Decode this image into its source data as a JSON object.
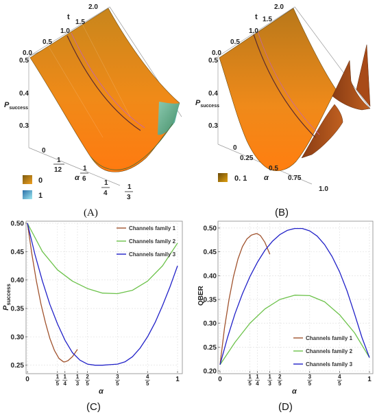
{
  "panels": {
    "A": {
      "caption": "(A)",
      "t_label": "t",
      "t_ticks": [
        "0.0",
        "0.5",
        "1.0",
        "1.5",
        "2.0"
      ],
      "z_label": "P",
      "z_label_sub": "success",
      "z_ticks": [
        "0.5",
        "0.4",
        "0.3",
        "0"
      ],
      "alpha_label": "α",
      "alpha_ticks": [
        {
          "num": "1",
          "den": "12"
        },
        {
          "num": "1",
          "den": "6"
        },
        {
          "num": "1",
          "den": "4"
        },
        {
          "num": "1",
          "den": "3"
        }
      ],
      "legend": [
        {
          "label": "0",
          "colors": [
            "#7a5a10",
            "#f0a020"
          ]
        },
        {
          "label": "1",
          "colors": [
            "#2a6fa8",
            "#9fe8f0"
          ]
        }
      ]
    },
    "B": {
      "caption": "(B)",
      "t_label": "t",
      "t_ticks": [
        "0.0",
        "0.5",
        "1.0",
        "1.5",
        "2.0"
      ],
      "z_label": "P",
      "z_label_sub": "success",
      "z_ticks": [
        "0.5",
        "0.4",
        "0.3"
      ],
      "alpha_label": "α",
      "alpha_ticks": [
        "0",
        "0.25",
        "0.5",
        "0.75",
        "1.0"
      ],
      "legend": [
        {
          "label": "0. 1",
          "colors": [
            "#6a4a08",
            "#e0a010"
          ]
        }
      ]
    },
    "C": {
      "caption": "(C)"
    },
    "D": {
      "caption": "(D)"
    }
  },
  "chart_data": [
    {
      "type": "line",
      "panel": "C",
      "xlabel": "α",
      "ylabel": "P",
      "ylabel_sub": "success",
      "xlim": [
        0,
        1
      ],
      "ylim": [
        0.24,
        0.5
      ],
      "y_ticks": [
        "0.25",
        "0.30",
        "0.35",
        "0.40",
        "0.45",
        "0.50"
      ],
      "x_ticks": [
        {
          "value": 0,
          "label": "0"
        },
        {
          "value": 0.2,
          "num": "1",
          "den": "5"
        },
        {
          "value": 0.25,
          "num": "1",
          "den": "4"
        },
        {
          "value": 0.3333,
          "num": "1",
          "den": "3"
        },
        {
          "value": 0.4,
          "num": "2",
          "den": "5"
        },
        {
          "value": 0.6,
          "num": "3",
          "den": "5"
        },
        {
          "value": 0.8,
          "num": "4",
          "den": "5"
        },
        {
          "value": 1,
          "label": "1"
        }
      ],
      "legend_position": "top-right",
      "series": [
        {
          "name": "Channels family 1",
          "color": "#a0522d",
          "x": [
            0,
            0.03,
            0.06,
            0.09,
            0.12,
            0.15,
            0.18,
            0.21,
            0.24,
            0.25,
            0.27,
            0.3,
            0.3333
          ],
          "y": [
            0.5,
            0.445,
            0.398,
            0.358,
            0.325,
            0.297,
            0.276,
            0.262,
            0.256,
            0.256,
            0.258,
            0.265,
            0.278
          ]
        },
        {
          "name": "Channels family 2",
          "color": "#6cc24a",
          "x": [
            0,
            0.1,
            0.2,
            0.3,
            0.4,
            0.5,
            0.6,
            0.7,
            0.8,
            0.9,
            1.0
          ],
          "y": [
            0.5,
            0.45,
            0.418,
            0.398,
            0.385,
            0.377,
            0.376,
            0.382,
            0.398,
            0.425,
            0.465
          ]
        },
        {
          "name": "Channels family 3",
          "color": "#2020c8",
          "x": [
            0,
            0.05,
            0.1,
            0.15,
            0.2,
            0.25,
            0.3,
            0.35,
            0.4,
            0.45,
            0.5,
            0.55,
            0.6,
            0.65,
            0.7,
            0.75,
            0.8,
            0.85,
            0.9,
            0.95,
            1.0
          ],
          "y": [
            0.5,
            0.445,
            0.398,
            0.357,
            0.323,
            0.294,
            0.272,
            0.259,
            0.252,
            0.25,
            0.25,
            0.251,
            0.252,
            0.256,
            0.265,
            0.28,
            0.3,
            0.325,
            0.355,
            0.388,
            0.425
          ]
        }
      ]
    },
    {
      "type": "line",
      "panel": "D",
      "xlabel": "α",
      "ylabel": "QBER",
      "xlim": [
        0,
        1
      ],
      "ylim": [
        0.2,
        0.51
      ],
      "y_ticks": [
        "0.20",
        "0.25",
        "0.30",
        "0.35",
        "0.40",
        "0.45",
        "0.50"
      ],
      "x_ticks": [
        {
          "value": 0,
          "label": "0"
        },
        {
          "value": 0.2,
          "num": "1",
          "den": "5"
        },
        {
          "value": 0.25,
          "num": "1",
          "den": "4"
        },
        {
          "value": 0.3333,
          "num": "1",
          "den": "3"
        },
        {
          "value": 0.4,
          "num": "2",
          "den": "5"
        },
        {
          "value": 0.6,
          "num": "3",
          "den": "5"
        },
        {
          "value": 0.8,
          "num": "4",
          "den": "5"
        },
        {
          "value": 1,
          "label": "1"
        }
      ],
      "legend_position": "bottom-right",
      "series": [
        {
          "name": "Channels family 1",
          "color": "#a0522d",
          "x": [
            0,
            0.03,
            0.06,
            0.09,
            0.12,
            0.15,
            0.18,
            0.21,
            0.24,
            0.25,
            0.27,
            0.3,
            0.3333
          ],
          "y": [
            0.213,
            0.29,
            0.35,
            0.398,
            0.435,
            0.461,
            0.477,
            0.485,
            0.488,
            0.488,
            0.484,
            0.47,
            0.445
          ]
        },
        {
          "name": "Channels family 2",
          "color": "#6cc24a",
          "x": [
            0,
            0.1,
            0.2,
            0.3,
            0.4,
            0.5,
            0.6,
            0.7,
            0.8,
            0.9,
            1.0
          ],
          "y": [
            0.213,
            0.26,
            0.3,
            0.33,
            0.35,
            0.359,
            0.358,
            0.345,
            0.318,
            0.28,
            0.228
          ]
        },
        {
          "name": "Channels family 3",
          "color": "#2020c8",
          "x": [
            0,
            0.05,
            0.1,
            0.15,
            0.2,
            0.25,
            0.3,
            0.35,
            0.4,
            0.45,
            0.5,
            0.55,
            0.6,
            0.65,
            0.7,
            0.75,
            0.8,
            0.85,
            0.9,
            0.95,
            1.0
          ],
          "y": [
            0.213,
            0.27,
            0.32,
            0.362,
            0.398,
            0.428,
            0.453,
            0.472,
            0.486,
            0.495,
            0.499,
            0.499,
            0.494,
            0.483,
            0.465,
            0.44,
            0.408,
            0.368,
            0.32,
            0.27,
            0.228
          ]
        }
      ]
    }
  ]
}
